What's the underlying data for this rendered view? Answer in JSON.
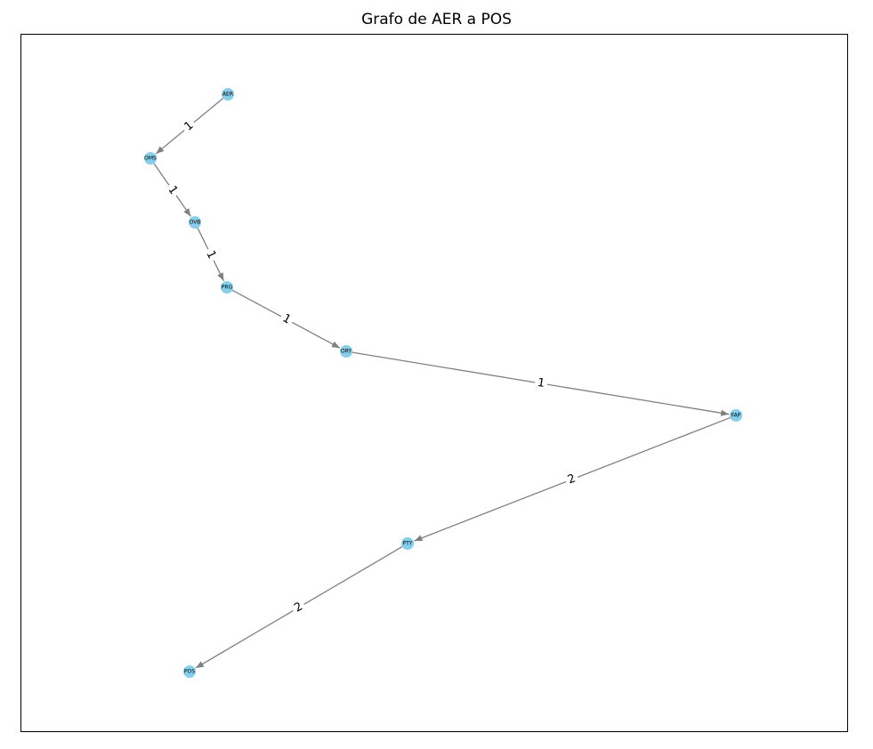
{
  "title": "Grafo de AER a POS",
  "colors": {
    "node_fill": "#87ceeb",
    "edge": "#808080",
    "text": "#000000"
  },
  "nodes": [
    {
      "id": "AER",
      "label": "AER"
    },
    {
      "id": "OMS",
      "label": "OMS"
    },
    {
      "id": "OVB",
      "label": "OVB"
    },
    {
      "id": "PRG",
      "label": "PRG"
    },
    {
      "id": "ORY",
      "label": "ORY"
    },
    {
      "id": "FAP",
      "label": "FAP"
    },
    {
      "id": "PTY",
      "label": "PTY"
    },
    {
      "id": "POS",
      "label": "POS"
    }
  ],
  "edges": [
    {
      "source": "AER",
      "target": "OMS",
      "weight": "1"
    },
    {
      "source": "OMS",
      "target": "OVB",
      "weight": "1"
    },
    {
      "source": "OVB",
      "target": "PRG",
      "weight": "1"
    },
    {
      "source": "PRG",
      "target": "ORY",
      "weight": "1"
    },
    {
      "source": "ORY",
      "target": "FAP",
      "weight": "1"
    },
    {
      "source": "FAP",
      "target": "PTY",
      "weight": "2"
    },
    {
      "source": "PTY",
      "target": "POS",
      "weight": "2"
    }
  ]
}
